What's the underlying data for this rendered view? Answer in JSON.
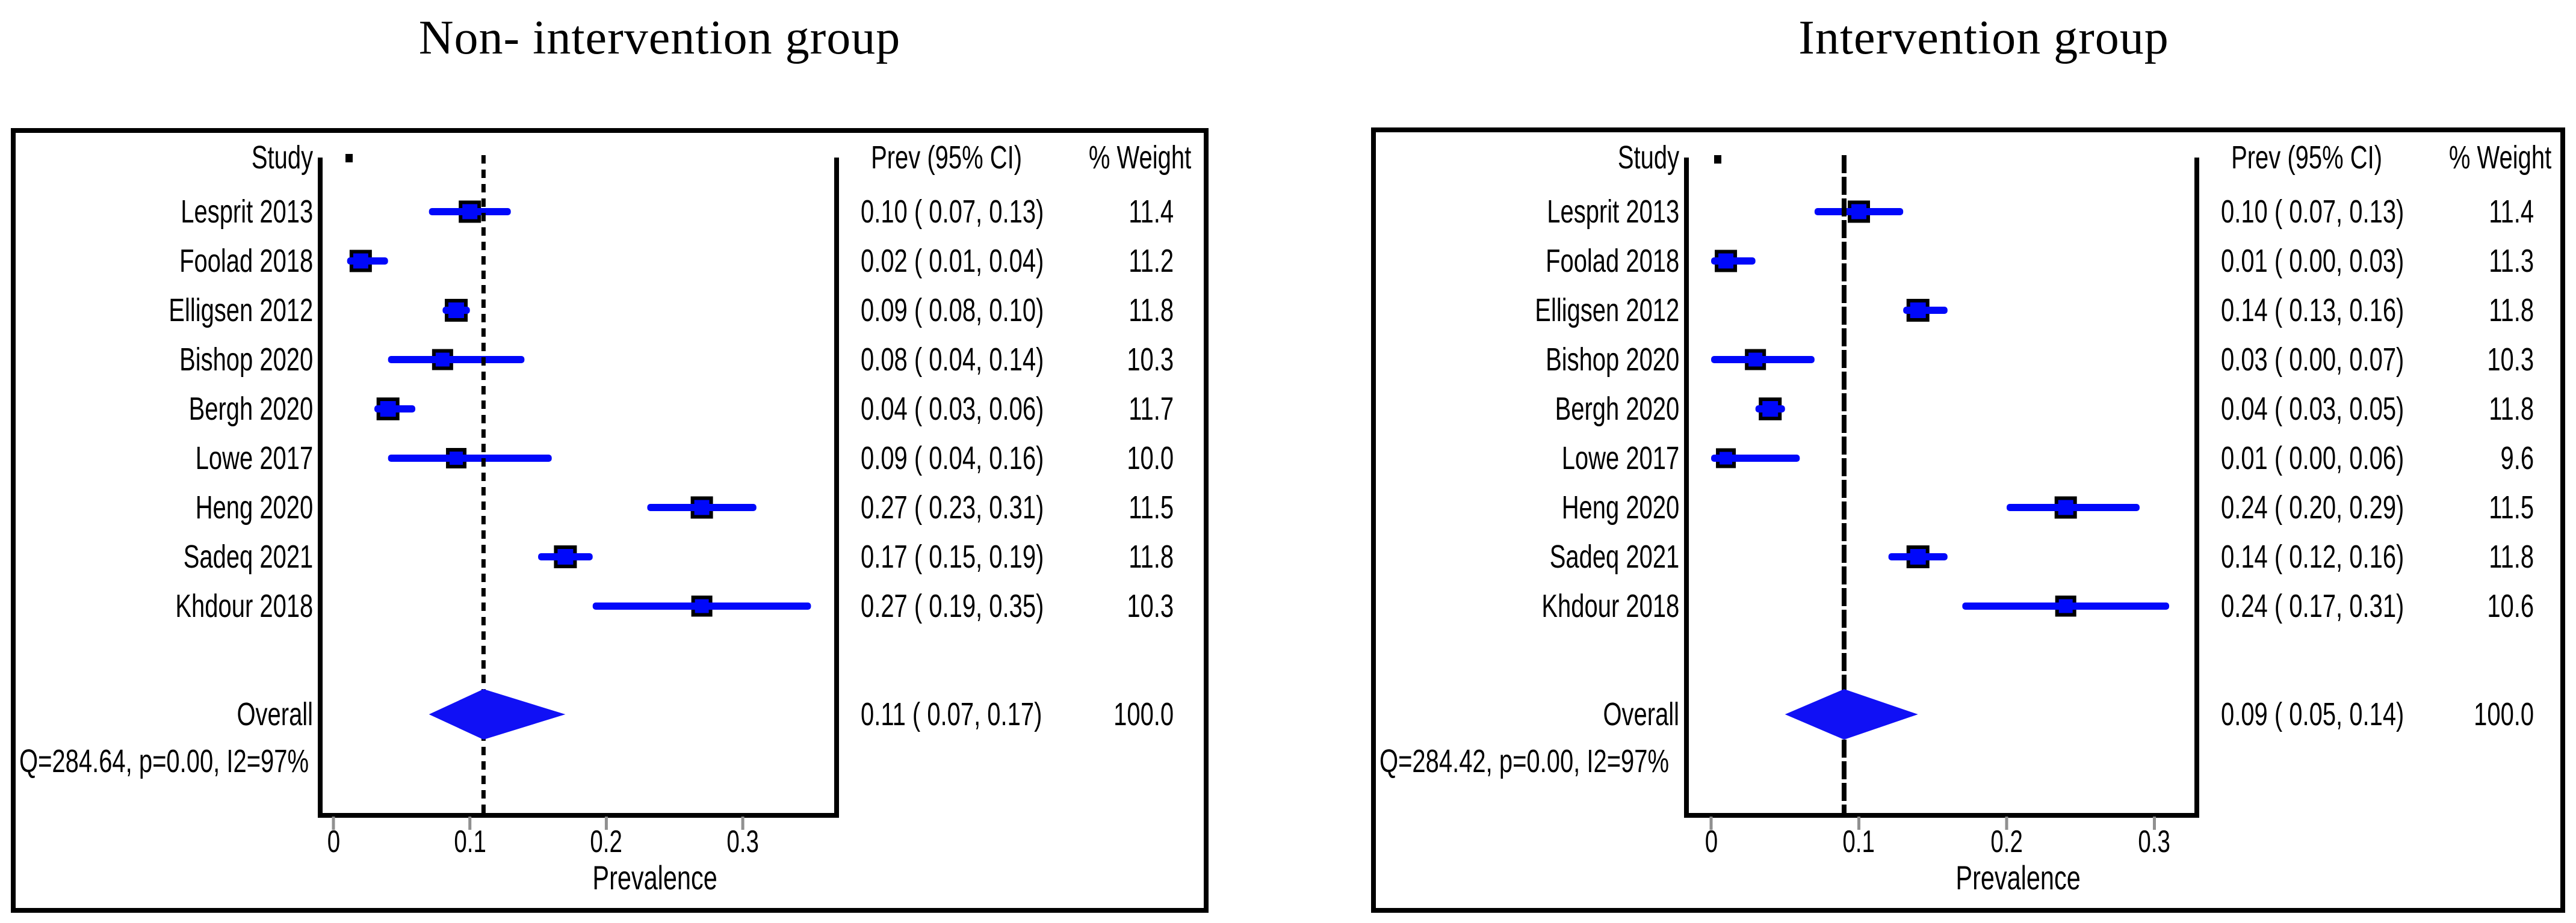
{
  "figure": {
    "left_title": "Non- intervention group",
    "right_title": "Intervention group"
  },
  "style": {
    "marker_color": "#0008fa",
    "diamond_color": "#1010f5",
    "frame_color": "#000000",
    "tick_color": "#909090",
    "text_color": "#000000"
  },
  "chart_data": [
    {
      "type": "forest",
      "title": "Non- intervention group",
      "xlabel": "Prevalence",
      "x_ticks": [
        "0",
        "0.1",
        "0.2",
        "0.3"
      ],
      "x_tick_values": [
        0,
        0.1,
        0.2,
        0.3
      ],
      "columns": {
        "study": "Study",
        "prev": "Prev (95% CI)",
        "weight": "% Weight"
      },
      "studies": [
        {
          "label": "Lesprit 2013",
          "prev": 0.1,
          "ci_low": 0.07,
          "ci_high": 0.13,
          "prev_text": "0.10 ( 0.07, 0.13)",
          "weight_text": "11.4",
          "weight": 11.4
        },
        {
          "label": "Foolad 2018",
          "prev": 0.02,
          "ci_low": 0.01,
          "ci_high": 0.04,
          "prev_text": "0.02 ( 0.01, 0.04)",
          "weight_text": "11.2",
          "weight": 11.2
        },
        {
          "label": "Elligsen 2012",
          "prev": 0.09,
          "ci_low": 0.08,
          "ci_high": 0.1,
          "prev_text": "0.09 ( 0.08, 0.10)",
          "weight_text": "11.8",
          "weight": 11.8
        },
        {
          "label": "Bishop 2020",
          "prev": 0.08,
          "ci_low": 0.04,
          "ci_high": 0.14,
          "prev_text": "0.08 ( 0.04, 0.14)",
          "weight_text": "10.3",
          "weight": 10.3
        },
        {
          "label": "Bergh 2020",
          "prev": 0.04,
          "ci_low": 0.03,
          "ci_high": 0.06,
          "prev_text": "0.04 ( 0.03, 0.06)",
          "weight_text": "11.7",
          "weight": 11.7
        },
        {
          "label": "Lowe 2017",
          "prev": 0.09,
          "ci_low": 0.04,
          "ci_high": 0.16,
          "prev_text": "0.09 ( 0.04, 0.16)",
          "weight_text": "10.0",
          "weight": 10.0
        },
        {
          "label": "Heng 2020",
          "prev": 0.27,
          "ci_low": 0.23,
          "ci_high": 0.31,
          "prev_text": "0.27 ( 0.23, 0.31)",
          "weight_text": "11.5",
          "weight": 11.5
        },
        {
          "label": "Sadeq 2021",
          "prev": 0.17,
          "ci_low": 0.15,
          "ci_high": 0.19,
          "prev_text": "0.17 ( 0.15, 0.19)",
          "weight_text": "11.8",
          "weight": 11.8
        },
        {
          "label": "Khdour 2018",
          "prev": 0.27,
          "ci_low": 0.19,
          "ci_high": 0.35,
          "prev_text": "0.27 ( 0.19, 0.35)",
          "weight_text": "10.3",
          "weight": 10.3
        }
      ],
      "overall": {
        "label": "Overall",
        "prev": 0.11,
        "ci_low": 0.07,
        "ci_high": 0.17,
        "prev_text": "0.11 ( 0.07, 0.17)",
        "weight_text": "100.0"
      },
      "heterogeneity": "Q=284.64, p=0.00, I2=97%"
    },
    {
      "type": "forest",
      "title": "Intervention group",
      "xlabel": "Prevalence",
      "x_ticks": [
        "0",
        "0.1",
        "0.2",
        "0.3"
      ],
      "x_tick_values": [
        0,
        0.1,
        0.2,
        0.3
      ],
      "columns": {
        "study": "Study",
        "prev": "Prev (95% CI)",
        "weight": "% Weight"
      },
      "studies": [
        {
          "label": "Lesprit 2013",
          "prev": 0.1,
          "ci_low": 0.07,
          "ci_high": 0.13,
          "prev_text": "0.10 ( 0.07, 0.13)",
          "weight_text": "11.4",
          "weight": 11.4
        },
        {
          "label": "Foolad 2018",
          "prev": 0.01,
          "ci_low": 0.0,
          "ci_high": 0.03,
          "prev_text": "0.01 ( 0.00, 0.03)",
          "weight_text": "11.3",
          "weight": 11.3
        },
        {
          "label": "Elligsen 2012",
          "prev": 0.14,
          "ci_low": 0.13,
          "ci_high": 0.16,
          "prev_text": "0.14 ( 0.13, 0.16)",
          "weight_text": "11.8",
          "weight": 11.8
        },
        {
          "label": "Bishop 2020",
          "prev": 0.03,
          "ci_low": 0.0,
          "ci_high": 0.07,
          "prev_text": "0.03 ( 0.00, 0.07)",
          "weight_text": "10.3",
          "weight": 10.3
        },
        {
          "label": "Bergh 2020",
          "prev": 0.04,
          "ci_low": 0.03,
          "ci_high": 0.05,
          "prev_text": "0.04 ( 0.03, 0.05)",
          "weight_text": "11.8",
          "weight": 11.8
        },
        {
          "label": "Lowe 2017",
          "prev": 0.01,
          "ci_low": 0.0,
          "ci_high": 0.06,
          "prev_text": "0.01 ( 0.00, 0.06)",
          "weight_text": "9.6",
          "weight": 9.6
        },
        {
          "label": "Heng 2020",
          "prev": 0.24,
          "ci_low": 0.2,
          "ci_high": 0.29,
          "prev_text": "0.24 ( 0.20, 0.29)",
          "weight_text": "11.5",
          "weight": 11.5
        },
        {
          "label": "Sadeq 2021",
          "prev": 0.14,
          "ci_low": 0.12,
          "ci_high": 0.16,
          "prev_text": "0.14 ( 0.12, 0.16)",
          "weight_text": "11.8",
          "weight": 11.8
        },
        {
          "label": "Khdour 2018",
          "prev": 0.24,
          "ci_low": 0.17,
          "ci_high": 0.31,
          "prev_text": "0.24 ( 0.17, 0.31)",
          "weight_text": "10.6",
          "weight": 10.6
        }
      ],
      "overall": {
        "label": "Overall",
        "prev": 0.09,
        "ci_low": 0.05,
        "ci_high": 0.14,
        "prev_text": "0.09 ( 0.05, 0.14)",
        "weight_text": "100.0"
      },
      "heterogeneity": "Q=284.42, p=0.00, I2=97%"
    }
  ]
}
